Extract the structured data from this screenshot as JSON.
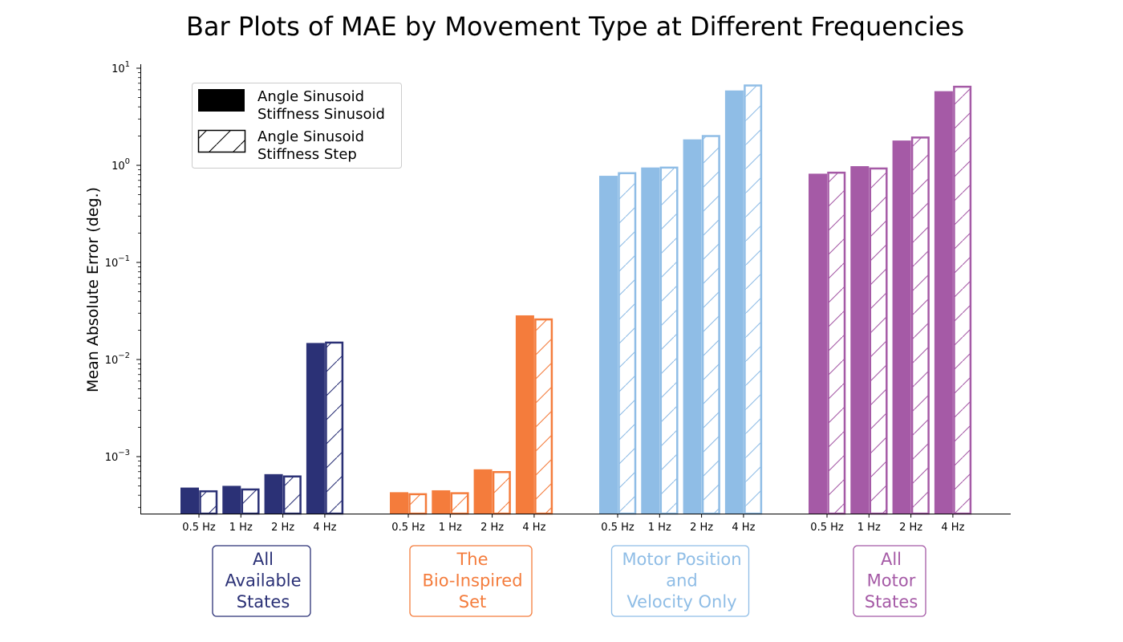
{
  "chart_data": {
    "type": "bar",
    "title": "Bar Plots of MAE by Movement Type at Different Frequencies",
    "ylabel": "Mean Absolute Error (deg.)",
    "xlabel": "",
    "yscale": "log",
    "ylim": [
      0.00025,
      12
    ],
    "yticks": [
      {
        "value": 0.001,
        "base": "10",
        "exp": "−3"
      },
      {
        "value": 0.01,
        "base": "10",
        "exp": "−2"
      },
      {
        "value": 0.1,
        "base": "10",
        "exp": "−1"
      },
      {
        "value": 1,
        "base": "10",
        "exp": "0"
      },
      {
        "value": 10,
        "base": "10",
        "exp": "1"
      }
    ],
    "frequencies": [
      "0.5 Hz",
      "1 Hz",
      "2 Hz",
      "4 Hz"
    ],
    "legend": {
      "placement": "top-left",
      "entries": [
        {
          "line1": "Angle Sinusoid",
          "line2": "Stiffness Sinusoid",
          "style": "filled"
        },
        {
          "line1": "Angle Sinusoid",
          "line2": "Stiffness Step",
          "style": "hatched"
        }
      ]
    },
    "groups": [
      {
        "label_lines": [
          "All",
          "Available",
          "States"
        ],
        "color": "#2b3176",
        "series": [
          {
            "values": [
              0.00048,
              0.0005,
              0.00066,
              0.0148
            ]
          },
          {
            "values": [
              0.00045,
              0.00047,
              0.00064,
              0.0153
            ]
          }
        ]
      },
      {
        "label_lines": [
          "The",
          "Bio-Inspired",
          "Set"
        ],
        "color": "#f47c3c",
        "series": [
          {
            "values": [
              0.00043,
              0.00045,
              0.00074,
              0.0285
            ]
          },
          {
            "values": [
              0.00042,
              0.00043,
              0.00071,
              0.0265
            ]
          }
        ]
      },
      {
        "label_lines": [
          "Motor Position",
          "and",
          "Velocity Only"
        ],
        "color": "#8fbde6",
        "series": [
          {
            "values": [
              0.78,
              0.95,
              1.85,
              5.9
            ]
          },
          {
            "values": [
              0.85,
              0.97,
              2.05,
              6.8
            ]
          }
        ]
      },
      {
        "label_lines": [
          "All",
          "Motor",
          "States"
        ],
        "color": "#a55aa6",
        "series": [
          {
            "values": [
              0.82,
              0.98,
              1.8,
              5.8
            ]
          },
          {
            "values": [
              0.86,
              0.95,
              1.98,
              6.6
            ]
          }
        ]
      }
    ]
  }
}
